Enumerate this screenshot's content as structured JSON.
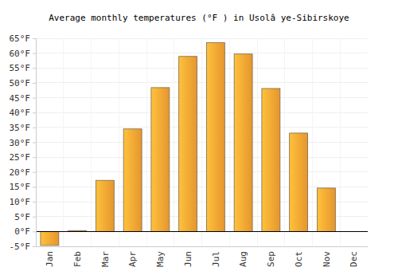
{
  "chart_data": {
    "type": "bar",
    "title": "Average monthly temperatures (°F ) in Usolâ  ye-Sibirskoye",
    "categories": [
      "Jan",
      "Feb",
      "Mar",
      "Apr",
      "May",
      "Jun",
      "Jul",
      "Aug",
      "Sep",
      "Oct",
      "Nov",
      "Dec"
    ],
    "values": [
      -4.7,
      0.3,
      17.2,
      34.5,
      48.4,
      58.9,
      63.5,
      59.7,
      48.1,
      33.1,
      14.6,
      0
    ],
    "color": "#ffa733",
    "ylim": [
      -5,
      65
    ],
    "yticks": [
      {
        "value": -5,
        "label": "-5°F"
      },
      {
        "value": 0,
        "label": "0°F"
      },
      {
        "value": 5,
        "label": "5°F"
      },
      {
        "value": 10,
        "label": "10°F"
      },
      {
        "value": 15,
        "label": "15°F"
      },
      {
        "value": 20,
        "label": "20°F"
      },
      {
        "value": 25,
        "label": "25°F"
      },
      {
        "value": 30,
        "label": "30°F"
      },
      {
        "value": 35,
        "label": "35°F"
      },
      {
        "value": 40,
        "label": "40°F"
      },
      {
        "value": 45,
        "label": "45°F"
      },
      {
        "value": 50,
        "label": "50°F"
      },
      {
        "value": 55,
        "label": "55°F"
      },
      {
        "value": 60,
        "label": "60°F"
      },
      {
        "value": 65,
        "label": "65°F"
      }
    ],
    "grid": true
  }
}
